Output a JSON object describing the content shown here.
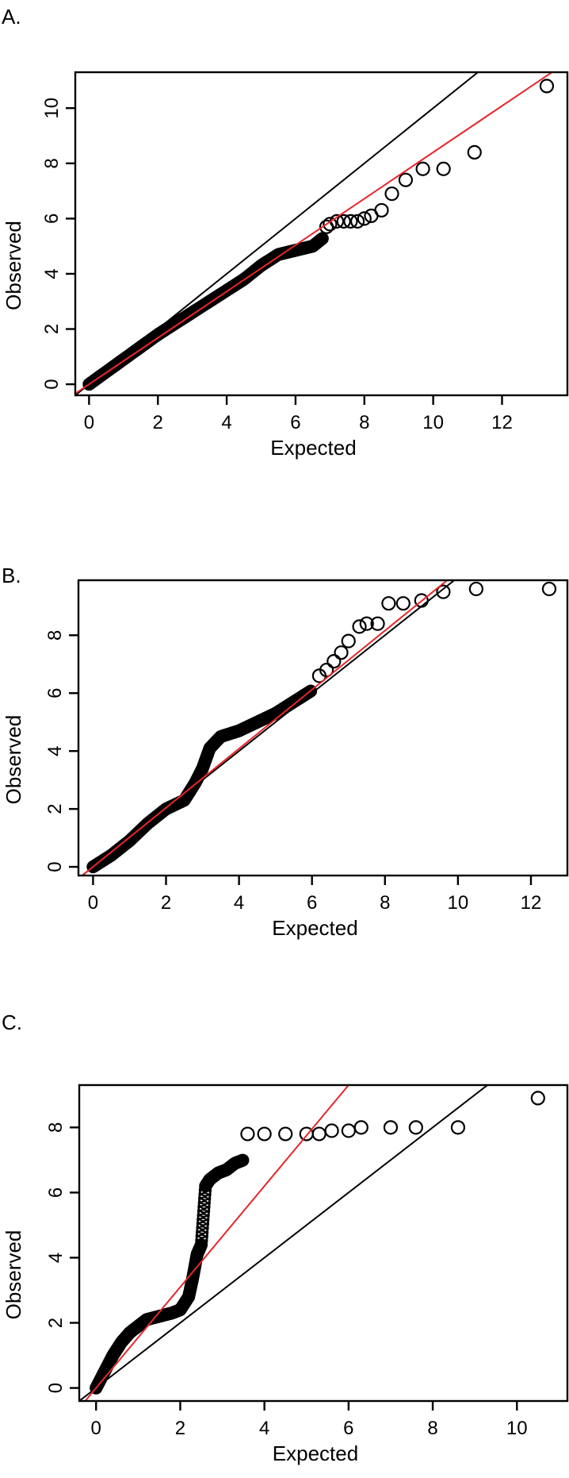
{
  "figure": {
    "panels": [
      {
        "label": "A.",
        "xlabel": "Expected",
        "ylabel": "Observed"
      },
      {
        "label": "B.",
        "xlabel": "Expected",
        "ylabel": "Observed"
      },
      {
        "label": "C.",
        "xlabel": "Expected",
        "ylabel": "Observed"
      }
    ],
    "colors": {
      "points": "#000000",
      "identity_line": "#000000",
      "fit_line": "#e8262a"
    }
  },
  "chart_data": [
    {
      "type": "scatter",
      "title": "A.",
      "xlabel": "Expected",
      "ylabel": "Observed",
      "xlim": [
        -0.4,
        13.9
      ],
      "ylim": [
        -0.4,
        11.3
      ],
      "xticks": [
        0,
        2,
        4,
        6,
        8,
        10,
        12
      ],
      "yticks": [
        0,
        2,
        4,
        6,
        8,
        10
      ],
      "grid": false,
      "lines": [
        {
          "name": "identity",
          "color": "#000000",
          "slope": 1,
          "intercept": 0
        },
        {
          "name": "fit",
          "color": "#e8262a",
          "slope": 0.84,
          "intercept": 0
        }
      ],
      "series": [
        {
          "name": "dense",
          "x": [
            0,
            0.5,
            1,
            1.5,
            2,
            2.5,
            3,
            3.5,
            4,
            4.5,
            5,
            5.5,
            6,
            6.5,
            6.8
          ],
          "y": [
            0,
            0.45,
            0.9,
            1.35,
            1.8,
            2.2,
            2.6,
            3.0,
            3.4,
            3.8,
            4.3,
            4.7,
            4.85,
            5.0,
            5.3
          ]
        },
        {
          "name": "tail",
          "x": [
            6.9,
            7.0,
            7.2,
            7.4,
            7.6,
            7.8,
            8.0,
            8.2,
            8.5,
            8.8,
            9.2,
            9.7,
            10.3,
            11.2,
            13.3
          ],
          "y": [
            5.7,
            5.8,
            5.9,
            5.9,
            5.9,
            5.9,
            6.0,
            6.1,
            6.3,
            6.9,
            7.4,
            7.8,
            7.8,
            8.4,
            10.8
          ]
        }
      ]
    },
    {
      "type": "scatter",
      "title": "B.",
      "xlabel": "Expected",
      "ylabel": "Observed",
      "xlim": [
        -0.4,
        13.0
      ],
      "ylim": [
        -0.3,
        9.9
      ],
      "xticks": [
        0,
        2,
        4,
        6,
        8,
        10,
        12
      ],
      "yticks": [
        0,
        2,
        4,
        6,
        8
      ],
      "grid": false,
      "lines": [
        {
          "name": "identity",
          "color": "#000000",
          "slope": 1,
          "intercept": 0
        },
        {
          "name": "fit",
          "color": "#e8262a",
          "slope": 1.02,
          "intercept": 0
        }
      ],
      "series": [
        {
          "name": "dense",
          "x": [
            0,
            0.5,
            1,
            1.5,
            2,
            2.5,
            2.8,
            3.0,
            3.2,
            3.5,
            4,
            4.5,
            5,
            5.5,
            6
          ],
          "y": [
            0,
            0.4,
            0.9,
            1.5,
            2.0,
            2.3,
            2.9,
            3.4,
            4.1,
            4.5,
            4.7,
            5.0,
            5.3,
            5.7,
            6.1
          ]
        },
        {
          "name": "tail",
          "x": [
            6.2,
            6.4,
            6.6,
            6.8,
            7.0,
            7.3,
            7.5,
            7.8,
            8.1,
            8.5,
            9.0,
            9.6,
            10.5,
            12.5
          ],
          "y": [
            6.6,
            6.8,
            7.1,
            7.4,
            7.8,
            8.3,
            8.4,
            8.4,
            9.1,
            9.1,
            9.2,
            9.5,
            9.6,
            9.6
          ]
        }
      ]
    },
    {
      "type": "scatter",
      "title": "C.",
      "xlabel": "Expected",
      "ylabel": "Observed",
      "xlim": [
        -0.4,
        11.2
      ],
      "ylim": [
        -0.4,
        9.3
      ],
      "xticks": [
        0,
        2,
        4,
        6,
        8,
        10
      ],
      "yticks": [
        0,
        2,
        4,
        6,
        8
      ],
      "grid": false,
      "lines": [
        {
          "name": "identity",
          "color": "#000000",
          "slope": 1,
          "intercept": 0
        },
        {
          "name": "fit",
          "color": "#e8262a",
          "slope": 1.55,
          "intercept": 0
        }
      ],
      "series": [
        {
          "name": "dense",
          "x": [
            0,
            0.2,
            0.4,
            0.6,
            0.8,
            1.0,
            1.2,
            1.5,
            1.8,
            2.0,
            2.2,
            2.3,
            2.4,
            2.5,
            2.6,
            2.7,
            2.9,
            3.1,
            3.3,
            3.5
          ],
          "y": [
            0,
            0.5,
            1.0,
            1.4,
            1.7,
            1.9,
            2.1,
            2.2,
            2.3,
            2.4,
            2.8,
            3.4,
            4.1,
            4.4,
            6.2,
            6.4,
            6.6,
            6.7,
            6.9,
            7.0
          ]
        },
        {
          "name": "plateau",
          "x": [
            3.6,
            4.0,
            4.5,
            5.0,
            5.3,
            5.6,
            6.0,
            6.3,
            7.0,
            7.6,
            8.6,
            10.5
          ],
          "y": [
            7.8,
            7.8,
            7.8,
            7.8,
            7.8,
            7.9,
            7.9,
            8.0,
            8.0,
            8.0,
            8.0,
            8.9
          ]
        }
      ]
    }
  ]
}
